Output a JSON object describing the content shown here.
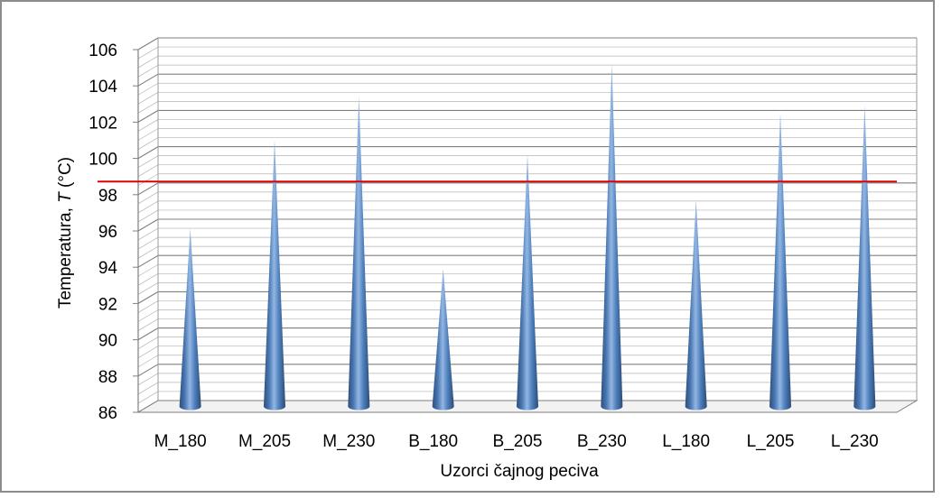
{
  "chart_data": {
    "type": "bar",
    "bar_shape": "cone",
    "title": "",
    "xlabel": "Uzorci čajnog peciva",
    "ylabel_prefix": "Temperatura, ",
    "ylabel_italic": "T",
    "ylabel_suffix": " (°C)",
    "categories": [
      "M_180",
      "M_205",
      "M_230",
      "B_180",
      "B_205",
      "B_230",
      "L_180",
      "L_205",
      "L_230"
    ],
    "values": [
      95.8,
      100.7,
      103.1,
      93.6,
      99.9,
      104.9,
      97.4,
      102.2,
      102.6
    ],
    "ylim": [
      86,
      106
    ],
    "yticks": [
      "86",
      "88",
      "90",
      "92",
      "94",
      "96",
      "98",
      "100",
      "102",
      "104",
      "106"
    ],
    "reference_line": 98.4,
    "grid": true,
    "legend": "none",
    "colors": {
      "bar": "#4f81bd",
      "bar_dark": "#2c4f7c",
      "reference_line": "#e00000",
      "grid": "#8c8c8c"
    }
  }
}
